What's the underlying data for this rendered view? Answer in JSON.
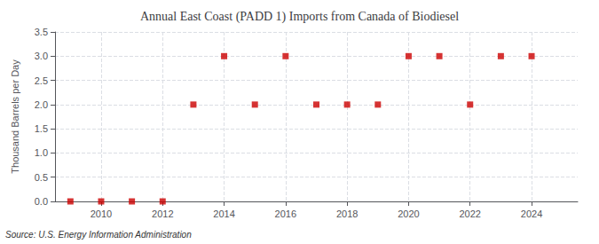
{
  "chart_data": {
    "type": "scatter",
    "title": "Annual East Coast (PADD 1) Imports from Canada of Biodiesel",
    "ylabel": "Thousand Barrels per Day",
    "annotation": "Source: U.S. Energy Information Administration",
    "x": [
      2009,
      2010,
      2011,
      2012,
      2013,
      2014,
      2015,
      2016,
      2017,
      2018,
      2019,
      2020,
      2021,
      2022,
      2023,
      2024
    ],
    "values": [
      0.0,
      0.0,
      0.0,
      0.0,
      2.0,
      3.0,
      2.0,
      3.0,
      2.0,
      2.0,
      2.0,
      3.0,
      3.0,
      2.0,
      3.0,
      3.0
    ],
    "color": "#cc0000",
    "marker": "square",
    "xlim": [
      2008.5,
      2025.5
    ],
    "ylim": [
      0.0,
      3.5
    ],
    "xticks": [
      2010,
      2012,
      2014,
      2016,
      2018,
      2020,
      2022,
      2024
    ],
    "yticks": [
      {
        "value": 0,
        "label": "0.0"
      },
      0.5,
      {
        "value": 1,
        "label": "1.0"
      },
      1.5,
      {
        "value": 2,
        "label": "2.0"
      },
      2.5,
      {
        "value": 3,
        "label": "3.0"
      },
      3.5
    ],
    "grid": true
  }
}
